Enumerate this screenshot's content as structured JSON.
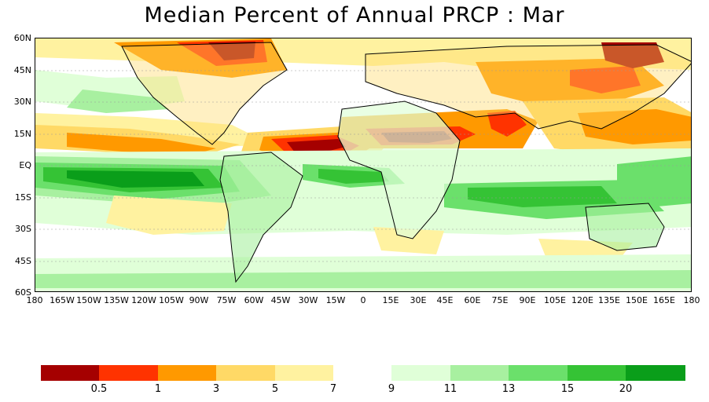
{
  "title": "Median Percent of Annual PRCP :    Mar",
  "lat_labels": [
    "60N",
    "45N",
    "30N",
    "15N",
    "EQ",
    "15S",
    "30S",
    "45S",
    "60S"
  ],
  "lon_labels": [
    "180",
    "165W",
    "150W",
    "135W",
    "120W",
    "105W",
    "90W",
    "75W",
    "60W",
    "45W",
    "30W",
    "15W",
    "0",
    "15E",
    "30E",
    "45E",
    "60E",
    "75E",
    "90E",
    "105E",
    "120E",
    "135E",
    "150E",
    "165E",
    "180"
  ],
  "colorbar": {
    "left_colors": [
      "#a50000",
      "#ff3300",
      "#ff9900",
      "#ffd966",
      "#fff2a0"
    ],
    "right_colors": [
      "#e0ffd8",
      "#a8f0a0",
      "#6be06b",
      "#35c335",
      "#0a9e1a"
    ],
    "tick_labels": [
      "0.5",
      "1",
      "3",
      "5",
      "7",
      "9",
      "11",
      "13",
      "15",
      "20"
    ]
  },
  "colors": {
    "dry_extreme": "#a50000",
    "dry_strong": "#ff3300",
    "dry": "#ff9900",
    "dry_light": "#ffd966",
    "dry_faint": "#fff2a0",
    "wet_faint": "#e0ffd8",
    "wet_light": "#a8f0a0",
    "wet": "#6be06b",
    "wet_strong": "#35c335",
    "wet_extreme": "#0a9e1a",
    "missing": "#b0b0b0"
  }
}
